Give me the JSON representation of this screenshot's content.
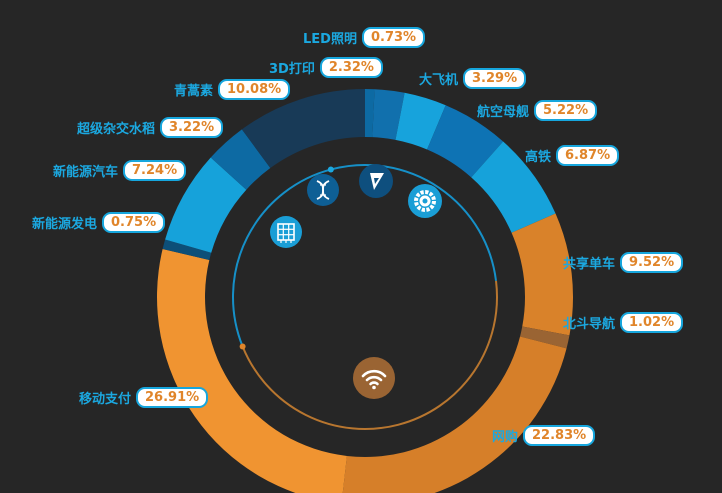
{
  "chart_data": {
    "type": "donut",
    "title": "",
    "slices": [
      {
        "name": "LED照明",
        "value": 0.73,
        "label": "0.73%",
        "color": "#0d6aa3"
      },
      {
        "name": "3D打印",
        "value": 2.32,
        "label": "2.32%",
        "color": "#1170ad"
      },
      {
        "name": "大飞机",
        "value": 3.29,
        "label": "3.29%",
        "color": "#17a3dc"
      },
      {
        "name": "航空母舰",
        "value": 5.22,
        "label": "5.22%",
        "color": "#0e73b4"
      },
      {
        "name": "高铁",
        "value": 6.87,
        "label": "6.87%",
        "color": "#16a2da"
      },
      {
        "name": "共享单车",
        "value": 9.52,
        "label": "9.52%",
        "color": "#d9822a"
      },
      {
        "name": "北斗导航",
        "value": 1.02,
        "label": "1.02%",
        "color": "#9a6433"
      },
      {
        "name": "网购",
        "value": 22.83,
        "label": "22.83%",
        "color": "#d67f29"
      },
      {
        "name": "移动支付",
        "value": 26.91,
        "label": "26.91%",
        "color": "#f09431"
      },
      {
        "name": "新能源发电",
        "value": 0.75,
        "label": "0.75%",
        "color": "#0d4f78"
      },
      {
        "name": "新能源汽车",
        "value": 7.24,
        "label": "7.24%",
        "color": "#16a2da"
      },
      {
        "name": "超级杂交水稻",
        "value": 3.22,
        "label": "3.22%",
        "color": "#0d6aa3"
      },
      {
        "name": "青蒿素",
        "value": 10.08,
        "label": "10.08%",
        "color": "#183a57"
      }
    ]
  },
  "colors": {
    "background": "#262626",
    "blue_accent": "#1ba8e0",
    "orange_accent": "#e0852a"
  },
  "icons": [
    "chip-icon",
    "dna-icon",
    "arrow-icon",
    "gear-icon",
    "wifi-icon"
  ]
}
